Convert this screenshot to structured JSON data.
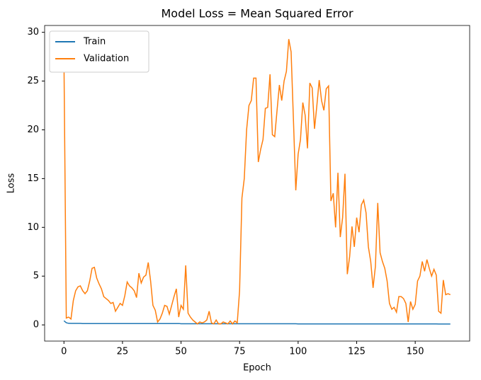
{
  "chart_data": {
    "type": "line",
    "title": "Model Loss = Mean Squared Error",
    "x_label": "Epoch",
    "y_label": "Loss",
    "x": [
      0,
      1,
      2,
      3,
      4,
      5,
      6,
      7,
      8,
      9,
      10,
      11,
      12,
      13,
      14,
      15,
      16,
      17,
      18,
      19,
      20,
      21,
      22,
      23,
      24,
      25,
      26,
      27,
      28,
      29,
      30,
      31,
      32,
      33,
      34,
      35,
      36,
      37,
      38,
      39,
      40,
      41,
      42,
      43,
      44,
      45,
      46,
      47,
      48,
      49,
      50,
      51,
      52,
      53,
      54,
      55,
      56,
      57,
      58,
      59,
      60,
      61,
      62,
      63,
      64,
      65,
      66,
      67,
      68,
      69,
      70,
      71,
      72,
      73,
      74,
      75,
      76,
      77,
      78,
      79,
      80,
      81,
      82,
      83,
      84,
      85,
      86,
      87,
      88,
      89,
      90,
      91,
      92,
      93,
      94,
      95,
      96,
      97,
      98,
      99,
      100,
      101,
      102,
      103,
      104,
      105,
      106,
      107,
      108,
      109,
      110,
      111,
      112,
      113,
      114,
      115,
      116,
      117,
      118,
      119,
      120,
      121,
      122,
      123,
      124,
      125,
      126,
      127,
      128,
      129,
      130,
      131,
      132,
      133,
      134,
      135,
      136,
      137,
      138,
      139,
      140,
      141,
      142,
      143,
      144,
      145,
      146,
      147,
      148,
      149,
      150,
      151,
      152,
      153,
      154,
      155,
      156,
      157,
      158,
      159,
      160,
      161,
      162,
      163,
      164,
      165
    ],
    "series": [
      {
        "name": "Train",
        "color": "#1f77b4",
        "values": [
          0.42,
          0.22,
          0.16,
          0.15,
          0.15,
          0.15,
          0.15,
          0.15,
          0.14,
          0.14,
          0.14,
          0.14,
          0.14,
          0.14,
          0.14,
          0.14,
          0.14,
          0.14,
          0.14,
          0.14,
          0.14,
          0.14,
          0.14,
          0.14,
          0.14,
          0.14,
          0.14,
          0.14,
          0.14,
          0.14,
          0.14,
          0.14,
          0.14,
          0.14,
          0.14,
          0.14,
          0.14,
          0.14,
          0.14,
          0.14,
          0.14,
          0.14,
          0.14,
          0.14,
          0.14,
          0.14,
          0.14,
          0.14,
          0.14,
          0.14,
          0.12,
          0.12,
          0.12,
          0.12,
          0.12,
          0.12,
          0.12,
          0.12,
          0.12,
          0.12,
          0.12,
          0.12,
          0.12,
          0.12,
          0.12,
          0.12,
          0.12,
          0.12,
          0.12,
          0.12,
          0.12,
          0.12,
          0.12,
          0.12,
          0.12,
          0.12,
          0.12,
          0.12,
          0.12,
          0.12,
          0.12,
          0.12,
          0.12,
          0.12,
          0.12,
          0.12,
          0.12,
          0.12,
          0.12,
          0.12,
          0.12,
          0.12,
          0.12,
          0.12,
          0.12,
          0.12,
          0.12,
          0.12,
          0.12,
          0.12,
          0.1,
          0.1,
          0.1,
          0.1,
          0.1,
          0.1,
          0.1,
          0.1,
          0.1,
          0.1,
          0.1,
          0.1,
          0.1,
          0.1,
          0.1,
          0.1,
          0.1,
          0.1,
          0.1,
          0.1,
          0.1,
          0.1,
          0.1,
          0.1,
          0.1,
          0.1,
          0.1,
          0.1,
          0.1,
          0.1,
          0.1,
          0.1,
          0.1,
          0.1,
          0.1,
          0.1,
          0.1,
          0.1,
          0.1,
          0.1,
          0.1,
          0.1,
          0.1,
          0.1,
          0.1,
          0.1,
          0.1,
          0.1,
          0.1,
          0.1,
          0.1,
          0.1,
          0.1,
          0.1,
          0.1,
          0.1,
          0.1,
          0.1,
          0.1,
          0.1,
          0.09,
          0.09,
          0.09,
          0.09,
          0.09,
          0.09
        ]
      },
      {
        "name": "Validation",
        "color": "#ff7f0e",
        "values": [
          27.3,
          0.7,
          0.8,
          0.6,
          2.5,
          3.5,
          3.9,
          4.0,
          3.5,
          3.2,
          3.5,
          4.5,
          5.8,
          5.9,
          4.8,
          4.2,
          3.7,
          2.9,
          2.7,
          2.5,
          2.2,
          2.3,
          1.4,
          1.8,
          2.2,
          2.0,
          3.0,
          4.4,
          4.0,
          3.8,
          3.5,
          2.8,
          5.3,
          4.3,
          4.9,
          5.1,
          6.4,
          4.5,
          2.0,
          1.5,
          0.3,
          0.6,
          1.2,
          2.0,
          1.9,
          1.1,
          2.0,
          2.9,
          3.7,
          0.8,
          2.0,
          1.6,
          6.1,
          1.2,
          0.8,
          0.5,
          0.3,
          0.1,
          0.3,
          0.2,
          0.3,
          0.5,
          1.4,
          0.2,
          0.1,
          0.5,
          0.1,
          0.1,
          0.3,
          0.2,
          0.1,
          0.4,
          0.1,
          0.4,
          0.2,
          3.5,
          13.0,
          15.0,
          20.0,
          22.5,
          23.0,
          25.3,
          25.3,
          16.7,
          18.0,
          19.0,
          22.2,
          22.3,
          25.7,
          19.5,
          19.3,
          22.0,
          24.6,
          23.0,
          25.0,
          26.0,
          29.3,
          28.0,
          21.0,
          13.8,
          17.5,
          19.0,
          22.8,
          21.5,
          18.1,
          24.8,
          24.3,
          20.1,
          22.5,
          25.1,
          23.0,
          22.0,
          24.2,
          24.5,
          12.7,
          13.5,
          10.0,
          15.6,
          9.0,
          11.0,
          15.5,
          5.2,
          7.0,
          10.1,
          8.0,
          11.0,
          9.5,
          12.3,
          12.8,
          11.5,
          8.0,
          6.5,
          3.8,
          6.0,
          12.5,
          7.4,
          6.5,
          5.8,
          4.5,
          2.2,
          1.6,
          1.8,
          1.3,
          2.9,
          2.9,
          2.7,
          2.2,
          0.3,
          2.4,
          1.6,
          2.1,
          4.5,
          5.0,
          6.5,
          5.5,
          6.7,
          5.8,
          5.0,
          5.7,
          5.1,
          1.4,
          1.2,
          4.6,
          3.1,
          3.2,
          3.1
        ]
      }
    ],
    "xlim": [
      -8.25,
      173.25
    ],
    "ylim": [
      -1.66,
      30.7
    ],
    "xticks": [
      0,
      25,
      50,
      75,
      100,
      125,
      150
    ],
    "yticks": [
      0,
      5,
      10,
      15,
      20,
      25,
      30
    ],
    "grid": false,
    "legend": "upper left"
  }
}
